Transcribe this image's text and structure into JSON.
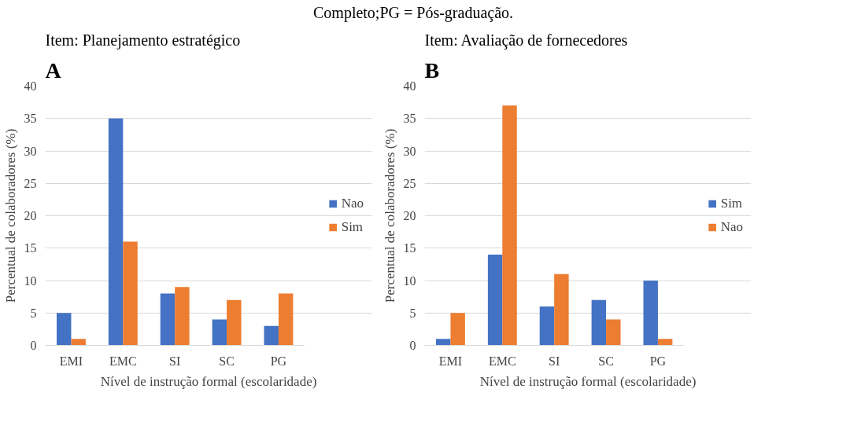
{
  "chart_data": [
    {
      "type": "bar",
      "title": "Item: Planejamento estratégico",
      "xlabel": "Nível de instrução formal (escolaridade)",
      "ylabel": "Percentual de colaboradores (%)",
      "categories": [
        "EMI",
        "EMC",
        "SI",
        "SC",
        "PG"
      ],
      "series": [
        {
          "name": "Nao",
          "color": "#4472c4",
          "values": [
            5,
            35,
            8,
            4,
            3
          ]
        },
        {
          "name": "Sim",
          "color": "#ed7d31",
          "values": [
            1,
            16,
            9,
            7,
            8
          ]
        }
      ],
      "ylim": [
        0,
        40
      ],
      "yticks": [
        0,
        5,
        10,
        15,
        20,
        25,
        30,
        35,
        40
      ],
      "grid": "y",
      "legend": "right",
      "annotations": [
        "Completo;PG = Pós-graduação.",
        "A"
      ]
    },
    {
      "type": "bar",
      "title": "Item: Avaliação de fornecedores",
      "xlabel": "Nível de instrução formal (escolaridade)",
      "ylabel": "Percentual de colaboradores (%)",
      "categories": [
        "EMI",
        "EMC",
        "SI",
        "SC",
        "PG"
      ],
      "series": [
        {
          "name": "Sim",
          "color": "#4472c4",
          "values": [
            1,
            14,
            6,
            7,
            10
          ]
        },
        {
          "name": "Nao",
          "color": "#ed7d31",
          "values": [
            5,
            37,
            11,
            4,
            1
          ]
        }
      ],
      "ylim": [
        0,
        40
      ],
      "yticks": [
        0,
        5,
        10,
        15,
        20,
        25,
        30,
        35,
        40
      ],
      "grid": "y",
      "legend": "right",
      "annotations": [
        "B"
      ]
    }
  ]
}
